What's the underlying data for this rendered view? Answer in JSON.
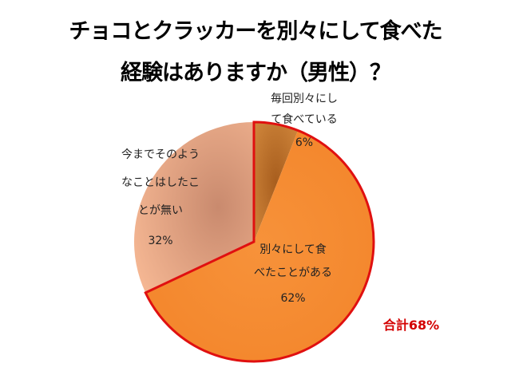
{
  "chart_data": {
    "type": "pie",
    "title_lines": [
      "チョコとクラッカーを別々にして食べた",
      "経験はありますか（男性）？"
    ],
    "slices": [
      {
        "label_lines": [
          "毎回別々にし",
          "て食べている"
        ],
        "value": 6,
        "value_label": "6%",
        "color": "#c8782e",
        "highlighted": true
      },
      {
        "label_lines": [
          "別々にして食",
          "べたことがある"
        ],
        "value": 62,
        "value_label": "62%",
        "color": "#f28a2c",
        "highlighted": true
      },
      {
        "label_lines": [
          "今までそのよう",
          "なことはしたこ",
          "とが無い"
        ],
        "value": 32,
        "value_label": "32%",
        "color": "#eda57e",
        "highlighted": false
      }
    ],
    "total_label": "合計68%",
    "highlight_color": "#e01010",
    "legend": "none"
  }
}
